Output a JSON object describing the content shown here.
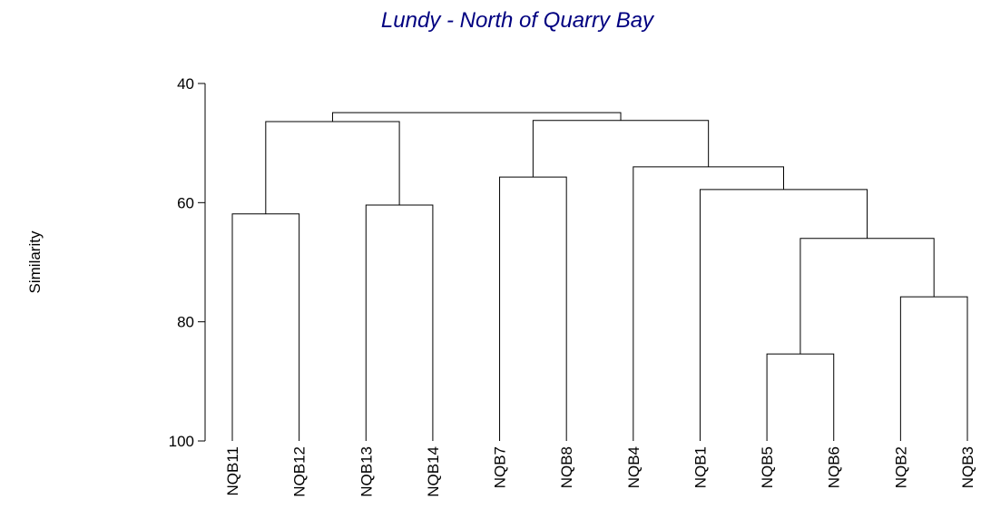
{
  "chart_data": {
    "type": "dendrogram",
    "title": "Lundy - North of Quarry Bay",
    "ylabel": "Similarity",
    "leaves": [
      "NQB11",
      "NQB12",
      "NQB13",
      "NQB14",
      "NQB7",
      "NQB8",
      "NQB4",
      "NQB1",
      "NQB5",
      "NQB6",
      "NQB2",
      "NQB3"
    ],
    "merges": [
      {
        "children": [
          0,
          1
        ],
        "height": 61.9
      },
      {
        "children": [
          2,
          3
        ],
        "height": 60.4
      },
      {
        "children": [
          12,
          13
        ],
        "height": 46.4
      },
      {
        "children": [
          4,
          5
        ],
        "height": 55.7
      },
      {
        "children": [
          8,
          9
        ],
        "height": 85.4
      },
      {
        "children": [
          10,
          11
        ],
        "height": 75.8
      },
      {
        "children": [
          16,
          17
        ],
        "height": 66
      },
      {
        "children": [
          7,
          18
        ],
        "height": 57.8
      },
      {
        "children": [
          6,
          19
        ],
        "height": 54
      },
      {
        "children": [
          15,
          20
        ],
        "height": 46.2
      },
      {
        "children": [
          14,
          21
        ],
        "height": 44.9
      }
    ],
    "ylim": [
      40,
      100
    ],
    "y_inverted": true,
    "yticks": [
      40,
      60,
      80,
      100
    ],
    "color": "#000000",
    "title_color": "#000080"
  }
}
